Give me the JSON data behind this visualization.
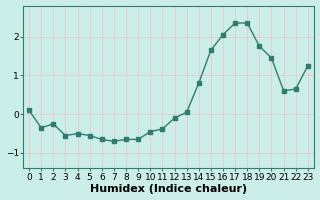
{
  "x": [
    0,
    1,
    2,
    3,
    4,
    5,
    6,
    7,
    8,
    9,
    10,
    11,
    12,
    13,
    14,
    15,
    16,
    17,
    18,
    19,
    20,
    21,
    22,
    23
  ],
  "y": [
    0.1,
    -0.35,
    -0.25,
    -0.55,
    -0.5,
    -0.55,
    -0.65,
    -0.7,
    -0.65,
    -0.65,
    -0.45,
    -0.38,
    -0.1,
    0.05,
    0.8,
    1.65,
    2.05,
    2.35,
    2.35,
    1.75,
    1.45,
    0.6,
    0.65,
    1.25
  ],
  "line_color": "#2e7d6e",
  "marker": "s",
  "marker_size": 2.5,
  "line_width": 1.0,
  "background_color": "#cceee8",
  "grid_color": "#e8c8c8",
  "xlabel": "Humidex (Indice chaleur)",
  "xlabel_fontsize": 8,
  "xlabel_bold": true,
  "ylim": [
    -1.4,
    2.8
  ],
  "yticks": [
    -1,
    0,
    1,
    2
  ],
  "xticks": [
    0,
    1,
    2,
    3,
    4,
    5,
    6,
    7,
    8,
    9,
    10,
    11,
    12,
    13,
    14,
    15,
    16,
    17,
    18,
    19,
    20,
    21,
    22,
    23
  ],
  "tick_fontsize": 6.5,
  "axis_color": "#2e7d6e",
  "spine_color": "#2e7d6e"
}
